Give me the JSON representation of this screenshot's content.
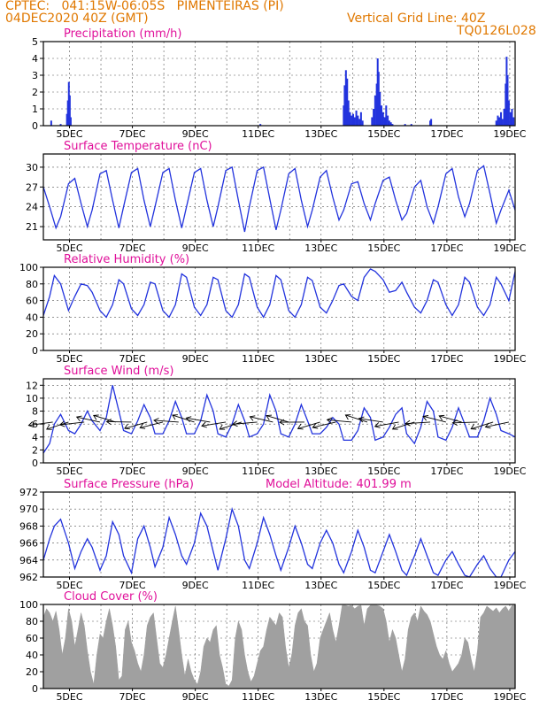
{
  "header": {
    "line1_left": "CPTEC:   041:15W-06:05S   PIMENTEIRAS (PI)",
    "line2_left": "04DEC2020 40Z (GMT)",
    "line1_right": "Vertical Grid Line: 40Z",
    "line2_right": "TQ0126L028",
    "color": "#e07800"
  },
  "colors": {
    "title": "#e0109a",
    "series": "#2233dd",
    "cloud": "#a0a0a0",
    "grid": "#555555"
  },
  "x_ticks": [
    "5DEC",
    "7DEC",
    "9DEC",
    "11DEC",
    "13DEC",
    "15DEC",
    "17DEC",
    "19DEC"
  ],
  "chart_data": [
    {
      "type": "bar",
      "title": "Precipitation (mm/h)",
      "x_range_days": [
        4.0,
        19.0
      ],
      "ylim": [
        0,
        5
      ],
      "yticks": [
        0,
        1,
        2,
        3,
        4,
        5
      ],
      "x": [
        4.25,
        4.55,
        4.75,
        4.78,
        4.81,
        4.84,
        4.87,
        10.9,
        13.55,
        13.58,
        13.62,
        13.66,
        13.7,
        13.75,
        13.8,
        13.85,
        13.9,
        13.95,
        14.0,
        14.05,
        14.1,
        14.15,
        14.45,
        14.5,
        14.55,
        14.6,
        14.63,
        14.66,
        14.7,
        14.75,
        14.8,
        14.85,
        14.9,
        14.95,
        15.0,
        15.05,
        15.1,
        15.5,
        15.7,
        16.3,
        16.33,
        18.4,
        18.45,
        18.5,
        18.55,
        18.6,
        18.65,
        18.7,
        18.73,
        18.76,
        18.8,
        18.85,
        18.9,
        18.95
      ],
      "values": [
        0.3,
        0.1,
        0.7,
        1.5,
        2.6,
        1.8,
        0.5,
        0.1,
        1.2,
        2.4,
        3.3,
        2.8,
        1.5,
        0.8,
        0.6,
        0.7,
        0.5,
        0.9,
        0.6,
        0.4,
        0.8,
        0.3,
        0.5,
        1.0,
        1.8,
        2.5,
        4.0,
        3.2,
        2.0,
        1.2,
        0.8,
        0.5,
        1.2,
        0.6,
        0.3,
        0.2,
        0.1,
        0.1,
        0.1,
        0.3,
        0.4,
        0.3,
        0.6,
        0.5,
        0.8,
        0.4,
        1.0,
        2.5,
        4.1,
        3.0,
        1.5,
        0.8,
        1.0,
        0.5
      ]
    },
    {
      "type": "line",
      "title": "Surface Temperature (nC)",
      "x_range_days": [
        4.0,
        19.0
      ],
      "ylim": [
        19,
        32
      ],
      "yticks": [
        21,
        24,
        27,
        30
      ],
      "x": [
        4.0,
        4.2,
        4.4,
        4.55,
        4.8,
        5.0,
        5.2,
        5.4,
        5.55,
        5.8,
        6.0,
        6.2,
        6.4,
        6.55,
        6.8,
        7.0,
        7.2,
        7.4,
        7.55,
        7.8,
        8.0,
        8.2,
        8.4,
        8.55,
        8.8,
        9.0,
        9.2,
        9.4,
        9.55,
        9.8,
        10.0,
        10.2,
        10.4,
        10.55,
        10.8,
        11.0,
        11.2,
        11.4,
        11.55,
        11.8,
        12.0,
        12.2,
        12.4,
        12.55,
        12.8,
        13.0,
        13.2,
        13.4,
        13.55,
        13.8,
        14.0,
        14.2,
        14.4,
        14.55,
        14.8,
        15.0,
        15.2,
        15.4,
        15.55,
        15.8,
        16.0,
        16.2,
        16.4,
        16.55,
        16.8,
        17.0,
        17.2,
        17.4,
        17.55,
        17.8,
        18.0,
        18.2,
        18.4,
        18.55,
        18.8,
        19.0
      ],
      "values": [
        27.0,
        24.0,
        20.8,
        22.5,
        27.5,
        28.3,
        24.5,
        21.0,
        23.5,
        29.0,
        29.5,
        25.0,
        20.8,
        24.0,
        29.2,
        29.8,
        25.0,
        21.0,
        24.0,
        29.2,
        29.8,
        25.0,
        20.8,
        24.0,
        29.2,
        29.8,
        25.0,
        21.0,
        24.0,
        29.5,
        30.0,
        25.0,
        20.2,
        24.0,
        29.5,
        30.0,
        25.2,
        20.5,
        23.5,
        29.0,
        29.8,
        25.0,
        21.0,
        23.5,
        28.5,
        29.5,
        25.5,
        22.0,
        23.5,
        27.5,
        27.8,
        24.5,
        22.0,
        24.5,
        28.0,
        28.5,
        25.0,
        22.0,
        23.0,
        27.0,
        28.0,
        24.0,
        21.5,
        24.0,
        29.0,
        29.8,
        25.5,
        22.5,
        24.5,
        29.5,
        30.2,
        26.0,
        21.5,
        23.5,
        26.5,
        23.5
      ]
    },
    {
      "type": "line",
      "title": "Relative Humidity (%)",
      "x_range_days": [
        4.0,
        19.0
      ],
      "ylim": [
        0,
        100
      ],
      "yticks": [
        0,
        20,
        40,
        60,
        80,
        100
      ],
      "x": [
        4.0,
        4.2,
        4.35,
        4.55,
        4.8,
        5.0,
        5.2,
        5.4,
        5.55,
        5.8,
        6.0,
        6.2,
        6.4,
        6.55,
        6.8,
        7.0,
        7.2,
        7.4,
        7.55,
        7.8,
        8.0,
        8.2,
        8.4,
        8.55,
        8.8,
        9.0,
        9.2,
        9.4,
        9.55,
        9.8,
        10.0,
        10.2,
        10.4,
        10.55,
        10.8,
        11.0,
        11.2,
        11.4,
        11.55,
        11.8,
        12.0,
        12.2,
        12.4,
        12.55,
        12.8,
        13.0,
        13.2,
        13.4,
        13.55,
        13.8,
        14.0,
        14.2,
        14.4,
        14.55,
        14.8,
        15.0,
        15.2,
        15.4,
        15.55,
        15.8,
        16.0,
        16.2,
        16.4,
        16.55,
        16.8,
        17.0,
        17.2,
        17.4,
        17.55,
        17.8,
        18.0,
        18.2,
        18.4,
        18.55,
        18.8,
        19.0
      ],
      "values": [
        42,
        65,
        90,
        80,
        48,
        65,
        80,
        78,
        70,
        48,
        40,
        55,
        85,
        80,
        50,
        42,
        55,
        82,
        80,
        48,
        40,
        55,
        92,
        88,
        52,
        42,
        55,
        88,
        85,
        48,
        40,
        55,
        92,
        88,
        52,
        40,
        55,
        90,
        85,
        48,
        40,
        55,
        88,
        84,
        52,
        45,
        60,
        78,
        80,
        65,
        60,
        88,
        98,
        95,
        85,
        70,
        72,
        82,
        70,
        52,
        45,
        60,
        85,
        82,
        55,
        42,
        55,
        88,
        82,
        52,
        42,
        55,
        88,
        80,
        60,
        95
      ]
    },
    {
      "type": "line",
      "title": "Surface Wind (m/s)",
      "x_range_days": [
        4.0,
        19.0
      ],
      "ylim": [
        0,
        13
      ],
      "yticks": [
        0,
        2,
        4,
        6,
        8,
        10,
        12
      ],
      "x": [
        4.0,
        4.2,
        4.35,
        4.55,
        4.8,
        5.0,
        5.2,
        5.4,
        5.55,
        5.8,
        6.0,
        6.2,
        6.4,
        6.55,
        6.8,
        7.0,
        7.2,
        7.4,
        7.55,
        7.8,
        8.0,
        8.2,
        8.4,
        8.55,
        8.8,
        9.0,
        9.2,
        9.4,
        9.55,
        9.8,
        10.0,
        10.2,
        10.4,
        10.55,
        10.8,
        11.0,
        11.2,
        11.4,
        11.55,
        11.8,
        12.0,
        12.2,
        12.4,
        12.55,
        12.8,
        13.0,
        13.2,
        13.4,
        13.55,
        13.8,
        14.0,
        14.2,
        14.4,
        14.55,
        14.8,
        15.0,
        15.2,
        15.4,
        15.55,
        15.8,
        16.0,
        16.2,
        16.4,
        16.55,
        16.8,
        17.0,
        17.2,
        17.4,
        17.55,
        17.8,
        18.0,
        18.2,
        18.4,
        18.55,
        18.8,
        19.0
      ],
      "values": [
        1.5,
        3.0,
        6.0,
        7.5,
        5.0,
        4.5,
        6.0,
        8.0,
        6.5,
        5.0,
        7.0,
        12.0,
        8.0,
        5.0,
        4.5,
        6.5,
        9.0,
        7.0,
        4.5,
        4.5,
        6.5,
        9.5,
        7.0,
        4.5,
        4.5,
        6.5,
        10.5,
        8.0,
        4.5,
        4.0,
        6.0,
        9.0,
        6.5,
        4.0,
        4.5,
        6.0,
        10.5,
        8.0,
        4.5,
        4.0,
        6.0,
        9.0,
        6.5,
        4.5,
        4.5,
        5.5,
        7.0,
        6.0,
        3.5,
        3.5,
        5.0,
        8.5,
        7.0,
        3.5,
        4.0,
        5.5,
        7.5,
        8.5,
        4.5,
        3.0,
        5.5,
        9.5,
        8.0,
        4.0,
        3.5,
        5.5,
        8.5,
        6.0,
        4.0,
        4.0,
        6.5,
        10.0,
        7.5,
        5.0,
        4.5,
        4.0
      ]
    },
    {
      "type": "line",
      "title": "Surface Pressure (hPa)",
      "annotation": "Model Altitude: 401.99 m",
      "x_range_days": [
        4.0,
        19.0
      ],
      "ylim": [
        962,
        972
      ],
      "yticks": [
        962,
        964,
        966,
        968,
        970,
        972
      ],
      "x": [
        4.0,
        4.2,
        4.35,
        4.55,
        4.8,
        5.0,
        5.2,
        5.4,
        5.55,
        5.8,
        6.0,
        6.2,
        6.4,
        6.55,
        6.8,
        7.0,
        7.2,
        7.4,
        7.55,
        7.8,
        8.0,
        8.2,
        8.4,
        8.55,
        8.8,
        9.0,
        9.2,
        9.4,
        9.55,
        9.8,
        10.0,
        10.2,
        10.4,
        10.55,
        10.8,
        11.0,
        11.2,
        11.4,
        11.55,
        11.8,
        12.0,
        12.2,
        12.4,
        12.55,
        12.8,
        13.0,
        13.2,
        13.4,
        13.55,
        13.8,
        14.0,
        14.2,
        14.4,
        14.55,
        14.8,
        15.0,
        15.2,
        15.4,
        15.55,
        15.8,
        16.0,
        16.2,
        16.4,
        16.55,
        16.8,
        17.0,
        17.2,
        17.4,
        17.55,
        17.8,
        18.0,
        18.2,
        18.4,
        18.55,
        18.8,
        19.0
      ],
      "values": [
        964.0,
        966.5,
        968.0,
        968.8,
        966.0,
        963.0,
        965.0,
        966.5,
        965.5,
        962.8,
        964.5,
        968.5,
        967.0,
        964.5,
        962.5,
        966.5,
        968.0,
        965.5,
        963.2,
        965.5,
        969.0,
        967.0,
        964.5,
        963.5,
        966.0,
        969.5,
        968.0,
        965.0,
        962.8,
        966.5,
        970.0,
        968.0,
        964.0,
        963.0,
        966.0,
        969.0,
        967.0,
        964.5,
        962.8,
        965.5,
        968.0,
        966.0,
        963.5,
        963.0,
        966.0,
        967.5,
        966.0,
        963.5,
        962.5,
        965.0,
        967.5,
        965.5,
        962.8,
        962.5,
        965.0,
        967.0,
        965.0,
        962.8,
        962.2,
        964.5,
        966.5,
        964.5,
        962.5,
        962.2,
        964.0,
        965.0,
        963.5,
        962.2,
        962.0,
        963.5,
        964.5,
        963.0,
        962.0,
        962.0,
        964.0,
        965.0
      ]
    },
    {
      "type": "area",
      "title": "Cloud Cover (%)",
      "x_range_days": [
        4.0,
        19.0
      ],
      "ylim": [
        0,
        100
      ],
      "yticks": [
        0,
        20,
        40,
        60,
        80,
        100
      ],
      "x": [
        4.0,
        4.1,
        4.2,
        4.3,
        4.4,
        4.5,
        4.6,
        4.7,
        4.8,
        4.9,
        5.0,
        5.1,
        5.2,
        5.3,
        5.4,
        5.5,
        5.6,
        5.7,
        5.8,
        5.9,
        6.0,
        6.1,
        6.2,
        6.3,
        6.4,
        6.5,
        6.6,
        6.7,
        6.8,
        6.9,
        7.0,
        7.1,
        7.2,
        7.3,
        7.4,
        7.5,
        7.6,
        7.7,
        7.8,
        7.9,
        8.0,
        8.1,
        8.2,
        8.3,
        8.4,
        8.5,
        8.6,
        8.7,
        8.8,
        8.9,
        9.0,
        9.1,
        9.2,
        9.3,
        9.4,
        9.5,
        9.6,
        9.7,
        9.8,
        9.9,
        10.0,
        10.1,
        10.2,
        10.3,
        10.4,
        10.5,
        10.6,
        10.7,
        10.8,
        10.9,
        11.0,
        11.1,
        11.2,
        11.3,
        11.4,
        11.5,
        11.6,
        11.7,
        11.8,
        11.9,
        12.0,
        12.1,
        12.2,
        12.3,
        12.4,
        12.5,
        12.6,
        12.7,
        12.8,
        12.9,
        13.0,
        13.1,
        13.2,
        13.3,
        13.4,
        13.5,
        13.6,
        13.7,
        13.8,
        13.9,
        14.0,
        14.1,
        14.2,
        14.3,
        14.4,
        14.5,
        14.6,
        14.7,
        14.8,
        14.9,
        15.0,
        15.1,
        15.2,
        15.3,
        15.4,
        15.5,
        15.6,
        15.7,
        15.8,
        15.9,
        16.0,
        16.1,
        16.2,
        16.3,
        16.4,
        16.5,
        16.6,
        16.7,
        16.8,
        16.9,
        17.0,
        17.1,
        17.2,
        17.3,
        17.4,
        17.5,
        17.6,
        17.7,
        17.8,
        17.9,
        18.0,
        18.1,
        18.2,
        18.3,
        18.4,
        18.5,
        18.6,
        18.7,
        18.8,
        18.9,
        19.0
      ],
      "values": [
        85,
        95,
        90,
        80,
        92,
        70,
        40,
        60,
        95,
        80,
        50,
        70,
        90,
        75,
        45,
        20,
        5,
        40,
        65,
        60,
        80,
        95,
        75,
        50,
        10,
        15,
        70,
        80,
        55,
        45,
        30,
        20,
        40,
        75,
        85,
        90,
        60,
        30,
        25,
        40,
        60,
        80,
        98,
        70,
        40,
        15,
        35,
        20,
        10,
        5,
        20,
        50,
        60,
        55,
        70,
        75,
        40,
        25,
        5,
        3,
        10,
        60,
        80,
        70,
        40,
        20,
        8,
        15,
        30,
        45,
        50,
        70,
        85,
        80,
        75,
        90,
        85,
        50,
        25,
        40,
        75,
        90,
        95,
        80,
        75,
        40,
        20,
        30,
        60,
        70,
        80,
        90,
        70,
        55,
        75,
        99,
        99,
        98,
        99,
        95,
        98,
        99,
        75,
        95,
        99,
        99,
        99,
        98,
        95,
        80,
        55,
        70,
        60,
        40,
        20,
        35,
        70,
        85,
        90,
        80,
        98,
        92,
        88,
        80,
        65,
        50,
        40,
        35,
        45,
        30,
        20,
        25,
        30,
        40,
        60,
        55,
        35,
        20,
        45,
        85,
        90,
        98,
        95,
        92,
        96,
        90,
        95,
        98,
        92,
        99,
        99
      ]
    }
  ]
}
